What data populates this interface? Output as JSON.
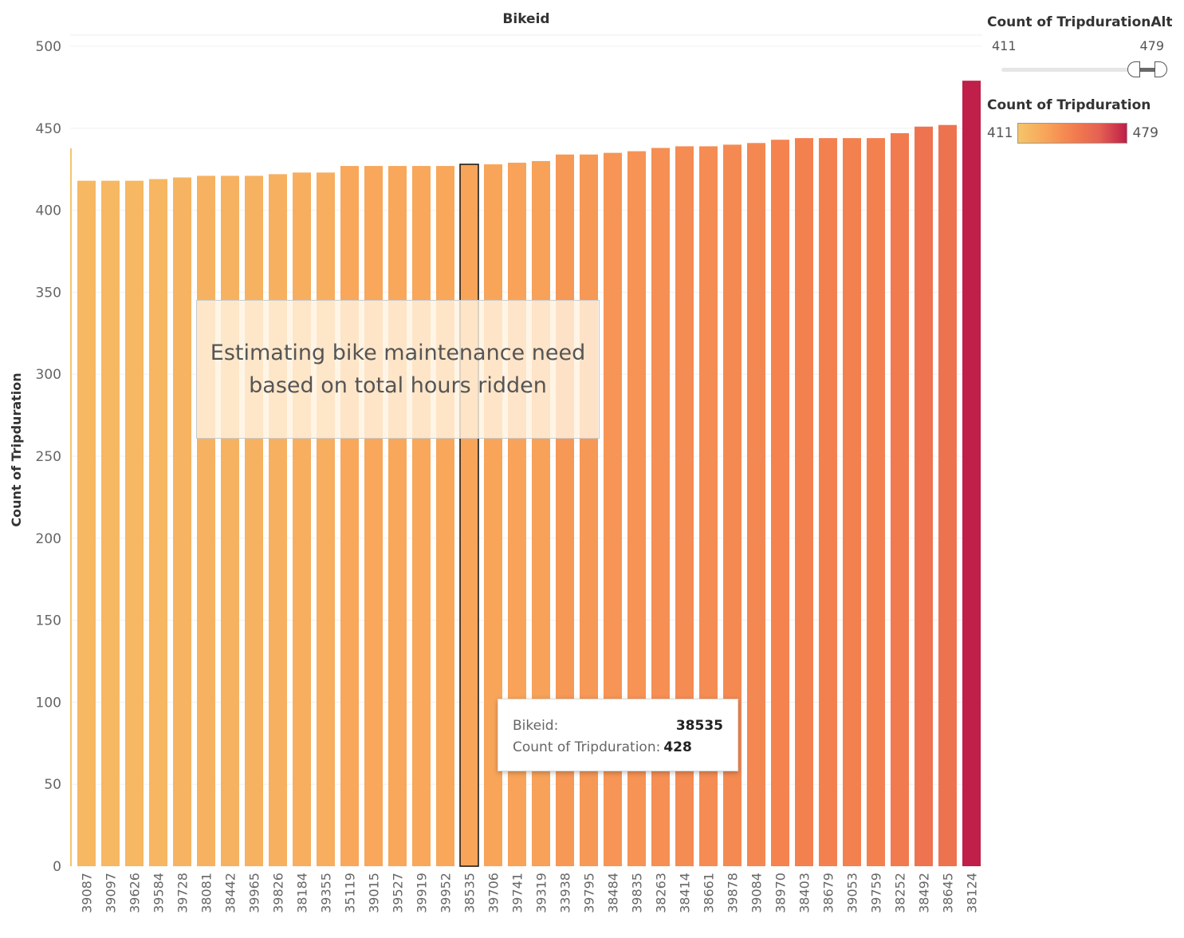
{
  "chart_data": {
    "type": "bar",
    "title": "Bikeid",
    "xlabel": "",
    "ylabel": "Count of Tripduration",
    "ylim": [
      0,
      500
    ],
    "yticks": [
      0,
      50,
      100,
      150,
      200,
      250,
      300,
      350,
      400,
      450,
      500
    ],
    "categories": [
      "39087",
      "39097",
      "39626",
      "39584",
      "39728",
      "38081",
      "38442",
      "39965",
      "39826",
      "38184",
      "39355",
      "35119",
      "39015",
      "39527",
      "39919",
      "39952",
      "38535",
      "39706",
      "39741",
      "39319",
      "33938",
      "39795",
      "38484",
      "39835",
      "38263",
      "38414",
      "38661",
      "39878",
      "39084",
      "38970",
      "38403",
      "38679",
      "39053",
      "39759",
      "38252",
      "38492",
      "38645",
      "38124"
    ],
    "values": [
      418,
      418,
      418,
      419,
      420,
      421,
      421,
      421,
      422,
      423,
      423,
      427,
      427,
      427,
      427,
      427,
      428,
      428,
      429,
      430,
      434,
      434,
      435,
      436,
      438,
      439,
      439,
      440,
      441,
      443,
      444,
      444,
      444,
      444,
      447,
      451,
      452,
      479
    ],
    "color_range": [
      "#f4c56a",
      "#bf1f48"
    ],
    "highlighted_index": 16,
    "grid": true
  },
  "annotation": {
    "line1": "Estimating bike maintenance need",
    "line2": "based on total hours ridden"
  },
  "tooltip": {
    "label1": "Bikeid:",
    "value1": "38535",
    "label2": "Count of Tripduration:",
    "value2": "428"
  },
  "slider_legend": {
    "title": "Count of TripdurationAlt",
    "min": "411",
    "max": "479"
  },
  "color_legend": {
    "title": "Count of Tripduration",
    "min": "411",
    "max": "479"
  }
}
